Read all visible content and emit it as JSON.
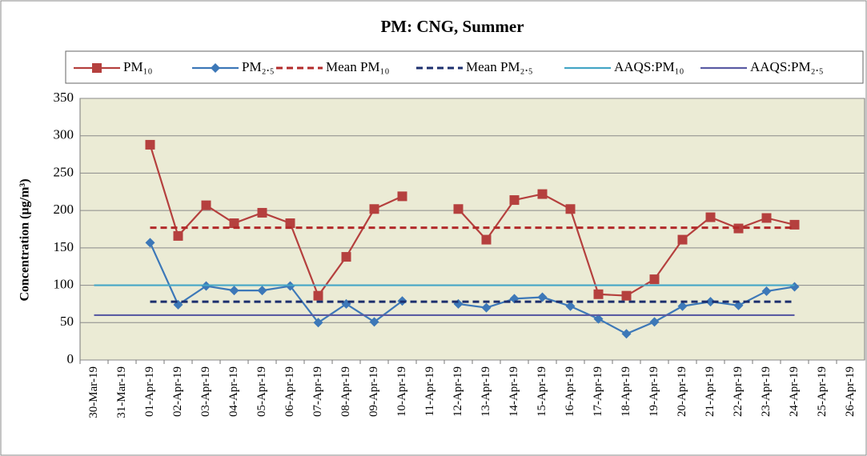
{
  "chart_data": {
    "type": "line",
    "title": "PM: CNG, Summer",
    "y_label": "Concentration (µg/m³)",
    "categories": [
      "30-Mar-19",
      "31-Mar-19",
      "01-Apr-19",
      "02-Apr-19",
      "03-Apr-19",
      "04-Apr-19",
      "05-Apr-19",
      "06-Apr-19",
      "07-Apr-19",
      "08-Apr-19",
      "09-Apr-19",
      "10-Apr-19",
      "11-Apr-19",
      "12-Apr-19",
      "13-Apr-19",
      "14-Apr-19",
      "15-Apr-19",
      "16-Apr-19",
      "17-Apr-19",
      "18-Apr-19",
      "19-Apr-19",
      "20-Apr-19",
      "21-Apr-19",
      "22-Apr-19",
      "23-Apr-19",
      "24-Apr-19",
      "25-Apr-19",
      "26-Apr-19"
    ],
    "series": [
      {
        "name": "PM₁₀",
        "color": "#b5403e",
        "marker": "square",
        "dash": false,
        "values": [
          null,
          null,
          288,
          166,
          207,
          183,
          197,
          183,
          86,
          138,
          202,
          219,
          null,
          202,
          161,
          214,
          222,
          202,
          88,
          86,
          108,
          161,
          191,
          176,
          190,
          181,
          null,
          null
        ]
      },
      {
        "name": "PM₂.₅",
        "color": "#3d78b8",
        "marker": "diamond",
        "dash": false,
        "values": [
          null,
          null,
          157,
          74,
          99,
          93,
          93,
          99,
          50,
          75,
          51,
          79,
          null,
          75,
          70,
          82,
          84,
          72,
          55,
          35,
          51,
          72,
          78,
          73,
          92,
          98,
          null,
          null
        ]
      },
      {
        "name": "Mean PM₁₀",
        "color": "#b22a2a",
        "marker": "none",
        "dash": true,
        "values": [
          null,
          null,
          177,
          177,
          177,
          177,
          177,
          177,
          177,
          177,
          177,
          177,
          177,
          177,
          177,
          177,
          177,
          177,
          177,
          177,
          177,
          177,
          177,
          177,
          177,
          177,
          null,
          null
        ]
      },
      {
        "name": "Mean PM₂.₅",
        "color": "#1c2f6e",
        "marker": "none",
        "dash": true,
        "values": [
          null,
          null,
          78,
          78,
          78,
          78,
          78,
          78,
          78,
          78,
          78,
          78,
          78,
          78,
          78,
          78,
          78,
          78,
          78,
          78,
          78,
          78,
          78,
          78,
          78,
          78,
          null,
          null
        ]
      },
      {
        "name": "AAQS:PM₁₀",
        "color": "#45a6c6",
        "marker": "none",
        "dash": false,
        "values": [
          100,
          100,
          100,
          100,
          100,
          100,
          100,
          100,
          100,
          100,
          100,
          100,
          100,
          100,
          100,
          100,
          100,
          100,
          100,
          100,
          100,
          100,
          100,
          100,
          100,
          100,
          null,
          null
        ]
      },
      {
        "name": "AAQS:PM₂.₅",
        "color": "#5a5ca3",
        "marker": "none",
        "dash": false,
        "values": [
          60,
          60,
          60,
          60,
          60,
          60,
          60,
          60,
          60,
          60,
          60,
          60,
          60,
          60,
          60,
          60,
          60,
          60,
          60,
          60,
          60,
          60,
          60,
          60,
          60,
          60,
          null,
          null
        ]
      }
    ],
    "ylim": [
      0,
      350
    ],
    "yticks": [
      0,
      50,
      100,
      150,
      200,
      250,
      300,
      350
    ],
    "grid": true
  }
}
